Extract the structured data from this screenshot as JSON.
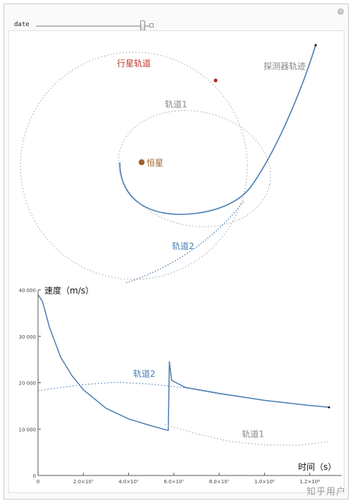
{
  "control": {
    "variable_label": "date"
  },
  "orbit_diagram": {
    "labels": {
      "planet_orbit": "行星轨道",
      "probe_trajectory": "探测器轨迹",
      "orbit1": "轨道1",
      "star": "恒星",
      "orbit2": "轨道2"
    },
    "colors": {
      "planet_orbit_label": "#c0392b",
      "planet": "#b22222",
      "star": "#a0622d",
      "probe": "#4a7db3",
      "orbit2_label": "#4a7db3",
      "dotted": "#a8a8a8",
      "gray_label": "#888888"
    }
  },
  "chart_data": {
    "type": "line",
    "title": "",
    "ylabel": "速度（m/s）",
    "xlabel": "时间（s）",
    "xlim": [
      0,
      130000000
    ],
    "ylim": [
      0,
      40000
    ],
    "x_ticks": [
      0,
      20000000,
      40000000,
      60000000,
      80000000,
      100000000,
      120000000
    ],
    "x_tick_labels": [
      "0",
      "2.0×10⁷",
      "4.0×10⁷",
      "6.0×10⁷",
      "8.0×10⁷",
      "1.0×10⁸",
      "1.2×10⁸"
    ],
    "y_ticks": [
      0,
      10000,
      20000,
      30000,
      40000
    ],
    "y_tick_labels": [
      "0",
      "10 000",
      "20 000",
      "30 000",
      "40 000"
    ],
    "series": [
      {
        "name": "",
        "style": "solid",
        "color": "#4a7db3",
        "points": [
          [
            0,
            39000
          ],
          [
            2000000,
            37500
          ],
          [
            5000000,
            32000
          ],
          [
            10000000,
            25500
          ],
          [
            15000000,
            21500
          ],
          [
            20000000,
            18500
          ],
          [
            30000000,
            14500
          ],
          [
            40000000,
            12200
          ],
          [
            50000000,
            10700
          ],
          [
            57500000,
            9700
          ],
          [
            58000000,
            24500
          ],
          [
            59000000,
            20500
          ],
          [
            65000000,
            19000
          ],
          [
            80000000,
            17700
          ],
          [
            100000000,
            16200
          ],
          [
            120000000,
            15100
          ],
          [
            128500000,
            14700
          ]
        ]
      },
      {
        "name": "轨道2",
        "style": "dotted",
        "color": "#4a7db3",
        "points": [
          [
            0,
            18300
          ],
          [
            20000000,
            19600
          ],
          [
            35000000,
            20100
          ],
          [
            50000000,
            19700
          ],
          [
            65000000,
            18900
          ],
          [
            80000000,
            17600
          ],
          [
            100000000,
            16200
          ],
          [
            120000000,
            15100
          ],
          [
            128500000,
            14700
          ]
        ]
      },
      {
        "name": "轨道1",
        "style": "dotted",
        "color": "#a8a8a8",
        "points": [
          [
            56000000,
            11000
          ],
          [
            70000000,
            9000
          ],
          [
            85000000,
            7300
          ],
          [
            100000000,
            6600
          ],
          [
            115000000,
            6500
          ],
          [
            128500000,
            7300
          ]
        ]
      }
    ],
    "annotations": [
      {
        "text": "轨道2",
        "x": 42000000,
        "y": 21300
      },
      {
        "text": "轨道1",
        "x": 90000000,
        "y": 8300
      }
    ]
  },
  "watermark": "知乎用户"
}
